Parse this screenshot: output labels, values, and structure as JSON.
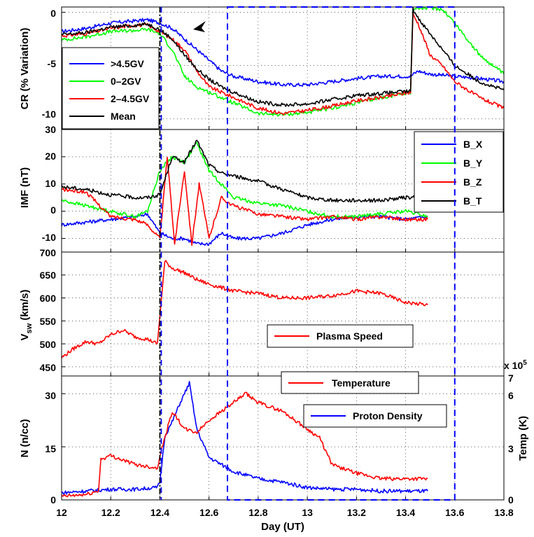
{
  "chart_data": [
    {
      "type": "line",
      "panel": "cr",
      "ylabel": "CR (% Variation)",
      "xlim": [
        12,
        13.8
      ],
      "ylim": [
        -11,
        0.5
      ],
      "yticks": [
        "0",
        "-5",
        "-10"
      ],
      "grid": true,
      "legend": {
        "placement": "bottom-left",
        "entries": [
          ">4.5GV",
          "0–2GV",
          "2–4.5GV",
          "Mean"
        ]
      },
      "annotations": [
        "arrow at ~12.53 pointing to CR decrease onset"
      ],
      "series": [
        {
          "name": ">4.5GV",
          "color": "#0000ff",
          "x": [
            12.0,
            12.1,
            12.2,
            12.3,
            12.35,
            12.4,
            12.45,
            12.5,
            12.55,
            12.6,
            12.65,
            12.7,
            12.8,
            12.9,
            13.0,
            13.1,
            13.2,
            13.3,
            13.42,
            13.45,
            13.5,
            13.6,
            13.7,
            13.8
          ],
          "values": [
            -1.8,
            -1.5,
            -1.0,
            -0.8,
            -0.7,
            -1.0,
            -1.5,
            -2.5,
            -3.5,
            -4.5,
            -5.5,
            -6.0,
            -6.5,
            -6.8,
            -6.8,
            -6.5,
            -6.2,
            -6.0,
            -6.0,
            -5.5,
            -5.8,
            -6.0,
            -6.2,
            -6.5
          ]
        },
        {
          "name": "0–2GV",
          "color": "#00ff00",
          "x": [
            12.0,
            12.1,
            12.2,
            12.3,
            12.35,
            12.4,
            12.45,
            12.5,
            12.55,
            12.6,
            12.65,
            12.7,
            12.8,
            12.9,
            13.0,
            13.1,
            13.2,
            13.3,
            13.42,
            13.43,
            13.45,
            13.5,
            13.55,
            13.6,
            13.7,
            13.8
          ],
          "values": [
            -2.6,
            -2.3,
            -1.8,
            -1.7,
            -1.6,
            -2.0,
            -3.5,
            -6.0,
            -7.0,
            -7.5,
            -8.0,
            -8.5,
            -9.5,
            -9.6,
            -9.4,
            -9.0,
            -8.5,
            -8.0,
            -7.5,
            0.3,
            0.4,
            0.4,
            0.3,
            -1.0,
            -4.0,
            -5.8
          ]
        },
        {
          "name": "2–4.5GV",
          "color": "#ff0000",
          "x": [
            12.0,
            12.1,
            12.2,
            12.3,
            12.35,
            12.4,
            12.45,
            12.5,
            12.55,
            12.6,
            12.65,
            12.7,
            12.8,
            12.9,
            13.0,
            13.1,
            13.2,
            13.3,
            13.42,
            13.43,
            13.45,
            13.5,
            13.55,
            13.6,
            13.7,
            13.8
          ],
          "values": [
            -2.2,
            -2.0,
            -1.5,
            -1.2,
            -1.2,
            -1.8,
            -2.5,
            -3.5,
            -5.5,
            -7.0,
            -7.5,
            -8.0,
            -9.0,
            -9.5,
            -9.2,
            -8.8,
            -8.3,
            -8.0,
            -7.5,
            -0.2,
            -1.0,
            -4.0,
            -5.0,
            -6.5,
            -8.0,
            -9.0
          ]
        },
        {
          "name": "Mean",
          "color": "#000000",
          "x": [
            12.0,
            12.1,
            12.2,
            12.3,
            12.35,
            12.4,
            12.45,
            12.5,
            12.55,
            12.6,
            12.65,
            12.7,
            12.8,
            12.9,
            13.0,
            13.1,
            13.2,
            13.3,
            13.42,
            13.43,
            13.45,
            13.5,
            13.55,
            13.6,
            13.7,
            13.8
          ],
          "values": [
            -2.1,
            -1.9,
            -1.4,
            -1.2,
            -1.1,
            -1.6,
            -2.5,
            -4.0,
            -5.3,
            -6.3,
            -7.0,
            -7.5,
            -8.4,
            -8.7,
            -8.6,
            -8.2,
            -7.8,
            -7.6,
            -7.4,
            0.3,
            -0.5,
            -2.0,
            -3.5,
            -5.0,
            -6.5,
            -7.3
          ]
        }
      ]
    },
    {
      "type": "line",
      "panel": "imf",
      "ylabel": "IMF (nT)",
      "xlim": [
        12,
        13.8
      ],
      "ylim": [
        -15,
        30
      ],
      "yticks": [
        "30",
        "20",
        "10",
        "0",
        "-10"
      ],
      "grid": true,
      "legend": {
        "placement": "top-right",
        "entries": [
          "B_X",
          "B_Y",
          "B_Z",
          "B_T"
        ]
      },
      "series": [
        {
          "name": "B_X",
          "color": "#0000ff",
          "x": [
            12.0,
            12.1,
            12.2,
            12.3,
            12.35,
            12.4,
            12.45,
            12.5,
            12.55,
            12.6,
            12.65,
            12.7,
            12.8,
            12.9,
            13.0,
            13.1,
            13.2,
            13.3,
            13.4,
            13.49
          ],
          "values": [
            -5,
            -4,
            -3,
            -2,
            -1,
            -8,
            -10,
            -10,
            -12,
            -12,
            -8,
            -10,
            -10,
            -8,
            -5,
            -3,
            -2,
            -2,
            -3,
            -2
          ]
        },
        {
          "name": "B_Y",
          "color": "#00ff00",
          "x": [
            12.0,
            12.1,
            12.2,
            12.3,
            12.35,
            12.4,
            12.45,
            12.5,
            12.55,
            12.6,
            12.65,
            12.7,
            12.8,
            12.9,
            13.0,
            13.1,
            13.2,
            13.3,
            13.4,
            13.49
          ],
          "values": [
            4,
            2,
            0,
            -2,
            0,
            15,
            20,
            18,
            25,
            15,
            10,
            5,
            3,
            2,
            0,
            -2,
            -2,
            -1,
            0,
            -2
          ]
        },
        {
          "name": "B_Z",
          "color": "#ff0000",
          "x": [
            12.0,
            12.1,
            12.2,
            12.3,
            12.35,
            12.4,
            12.43,
            12.46,
            12.5,
            12.53,
            12.56,
            12.6,
            12.65,
            12.7,
            12.8,
            12.9,
            13.0,
            13.1,
            13.2,
            13.3,
            13.4,
            13.49
          ],
          "values": [
            8,
            7,
            -2,
            -3,
            -5,
            -10,
            20,
            -12,
            15,
            -12,
            10,
            -10,
            5,
            2,
            -1,
            -2,
            -3,
            -2,
            -3,
            -2,
            -3,
            -3
          ]
        },
        {
          "name": "B_T",
          "color": "#000000",
          "x": [
            12.0,
            12.1,
            12.2,
            12.3,
            12.35,
            12.4,
            12.45,
            12.5,
            12.55,
            12.6,
            12.65,
            12.7,
            12.8,
            12.9,
            13.0,
            13.1,
            13.2,
            13.3,
            13.4,
            13.49
          ],
          "values": [
            9,
            8,
            6,
            5,
            5,
            6,
            20,
            18,
            26,
            17,
            14,
            13,
            11,
            8,
            5,
            4,
            4,
            4,
            5,
            5
          ]
        }
      ]
    },
    {
      "type": "line",
      "panel": "vsw",
      "ylabel_main": "V",
      "ylabel_sub": "sw",
      "ylabel_unit": " (km/s)",
      "xlim": [
        12,
        13.8
      ],
      "ylim": [
        430,
        700
      ],
      "yticks": [
        "700",
        "650",
        "600",
        "550",
        "500",
        "450"
      ],
      "grid": true,
      "legend": {
        "placement": "bottom-center",
        "entries": [
          "Plasma Speed"
        ]
      },
      "series": [
        {
          "name": "Plasma Speed",
          "color": "#ff0000",
          "x": [
            12.0,
            12.05,
            12.1,
            12.15,
            12.2,
            12.25,
            12.3,
            12.35,
            12.39,
            12.4,
            12.42,
            12.45,
            12.5,
            12.55,
            12.6,
            12.7,
            12.8,
            12.9,
            13.0,
            13.1,
            13.2,
            13.3,
            13.4,
            13.49
          ],
          "values": [
            470,
            490,
            505,
            500,
            520,
            530,
            515,
            510,
            500,
            560,
            680,
            665,
            655,
            640,
            630,
            615,
            610,
            600,
            600,
            605,
            615,
            610,
            590,
            585
          ]
        }
      ]
    },
    {
      "type": "line",
      "panel": "density_temp",
      "ylabel": "N (n/cc)",
      "ylabel_right": "Temp (K)",
      "exponent_label": "x 10",
      "exponent_power": "5",
      "xlabel": "Day (UT)",
      "xlim": [
        12,
        13.8
      ],
      "xticks": [
        "12",
        "12.2",
        "12.4",
        "12.6",
        "12.8",
        "13",
        "13.2",
        "13.4",
        "13.6",
        "13.8"
      ],
      "ylim": [
        0,
        35
      ],
      "yticks": [
        "30",
        "15",
        "0"
      ],
      "ylim_right": [
        0,
        7
      ],
      "yticks_right": [
        "7",
        "6",
        "3",
        "0"
      ],
      "grid": true,
      "legend": {
        "placement": "top-center",
        "entries": [
          "Temperature",
          "Proton Density"
        ]
      },
      "series": [
        {
          "name": "Proton Density",
          "color": "#0000ff",
          "axis": "left",
          "x": [
            12.0,
            12.1,
            12.2,
            12.3,
            12.39,
            12.4,
            12.42,
            12.45,
            12.48,
            12.5,
            12.52,
            12.55,
            12.6,
            12.65,
            12.7,
            12.75,
            12.8,
            12.9,
            13.0,
            13.1,
            13.2,
            13.3,
            13.4,
            13.49
          ],
          "values": [
            2,
            2.5,
            3,
            3,
            3.5,
            5,
            18,
            22,
            27,
            30,
            33,
            20,
            12,
            10,
            8,
            7,
            6,
            5,
            3.5,
            3,
            3,
            2.5,
            2.5,
            2.5
          ]
        },
        {
          "name": "Temperature",
          "color": "#ff0000",
          "axis": "right",
          "x": [
            12.0,
            12.1,
            12.15,
            12.16,
            12.2,
            12.3,
            12.39,
            12.4,
            12.45,
            12.5,
            12.55,
            12.6,
            12.65,
            12.7,
            12.75,
            12.8,
            12.9,
            13.0,
            13.05,
            13.1,
            13.2,
            13.3,
            13.4,
            13.49
          ],
          "values": [
            0.2,
            0.3,
            0.5,
            2.3,
            2.5,
            2.0,
            1.8,
            2.5,
            5.0,
            4.0,
            3.8,
            4.5,
            5.0,
            5.5,
            6.0,
            5.5,
            5.0,
            4.0,
            3.5,
            2.0,
            1.5,
            1.2,
            1.2,
            1.2
          ]
        }
      ]
    }
  ],
  "vlines": [
    {
      "x": 12.4,
      "color": "#000000",
      "style": "dashdot",
      "panels": "all"
    },
    {
      "x": 12.4,
      "color": "#0000ff",
      "style": "dashed",
      "panels": "all"
    }
  ],
  "dashed_box": {
    "x0": 12.675,
    "x1": 13.6,
    "color": "#0000ff"
  }
}
